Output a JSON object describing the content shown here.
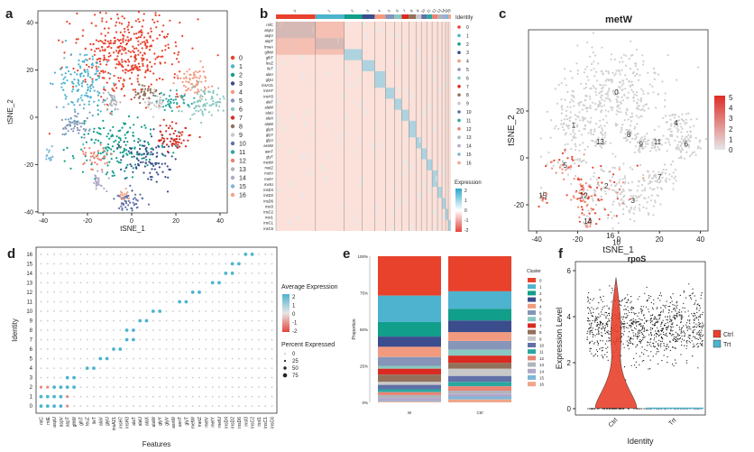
{
  "colors": [
    "#e8412c",
    "#4db3ce",
    "#119e8a",
    "#3b4d8d",
    "#f29a7f",
    "#8695b8",
    "#88c8c0",
    "#d92b21",
    "#93705a",
    "#c8c8c8",
    "#6270a8",
    "#2aa7a0",
    "#e98271",
    "#b0b4bb",
    "#b1a7c9",
    "#7fb6d8",
    "#f0a58a"
  ],
  "panels": {
    "a": {
      "letter": "a",
      "xlabel": "tSNE_1",
      "ylabel": "tSNE_2",
      "xticks": [
        "-40",
        "-20",
        "0",
        "20",
        "40"
      ],
      "yticks": [
        "40",
        "20",
        "0",
        "-20",
        "-40"
      ],
      "legend": [
        "0",
        "1",
        "2",
        "3",
        "4",
        "5",
        "6",
        "7",
        "8",
        "9",
        "10",
        "11",
        "12",
        "13",
        "14",
        "15",
        "16"
      ]
    },
    "b": {
      "letter": "b",
      "legend_title": "Identity",
      "legend": [
        "0",
        "1",
        "2",
        "3",
        "4",
        "5",
        "6",
        "7",
        "8",
        "9",
        "10",
        "11",
        "12",
        "13",
        "14",
        "15",
        "16"
      ],
      "colorbar_title": "Expression",
      "colorbar_ticks": [
        "2",
        "1",
        "0",
        "-1",
        "-2"
      ],
      "genes": [
        "rnlC",
        "aspU",
        "aspV",
        "aspT",
        "tmaA",
        "glhW",
        "glhT",
        "leuZ",
        "ileT",
        "alaV",
        "glyU",
        "insA21",
        "insH7",
        "insH3",
        "alaT",
        "alaW",
        "alaU",
        "alaX",
        "alaW",
        "glyX",
        "glyY",
        "glyV",
        "asnW",
        "asnT",
        "glyT",
        "metW",
        "metZ",
        "metV",
        "metY",
        "metU",
        "insD4",
        "insD2",
        "insD6",
        "insI3",
        "insC2",
        "insI1",
        "insC1",
        "insC6"
      ],
      "top_labels": [
        "0",
        "1",
        "2",
        "3",
        "4",
        "5",
        "6",
        "7",
        "8",
        "9",
        "10",
        "11",
        "12",
        "13",
        "14",
        "15",
        "16"
      ]
    },
    "c": {
      "letter": "c",
      "title": "metW",
      "xlabel": "tSNE_1",
      "ylabel": "tSNE_2",
      "xticks": [
        "-40",
        "-20",
        "0",
        "20",
        "40"
      ],
      "yticks": [
        "20",
        "0",
        "-20"
      ],
      "colorbar_ticks": [
        "5",
        "4",
        "3",
        "2",
        "1",
        "0"
      ],
      "cluster_labels": [
        "0",
        "1",
        "2",
        "3",
        "4",
        "5",
        "6",
        "7",
        "8",
        "9",
        "10",
        "11",
        "12",
        "13",
        "14",
        "15",
        "16"
      ]
    },
    "d": {
      "letter": "d",
      "xlabel": "Features",
      "ylabel": "Identity",
      "identities": [
        "0",
        "1",
        "2",
        "3",
        "4",
        "5",
        "6",
        "7",
        "8",
        "9",
        "10",
        "11",
        "12",
        "13",
        "14",
        "15",
        "16"
      ],
      "features": [
        "rnlC",
        "rnlE",
        "aspU",
        "aspV",
        "aspT",
        "glhW",
        "glhT",
        "leuZ",
        "ileT",
        "alaV",
        "glyU",
        "insA21",
        "insH7",
        "insH3",
        "alaT",
        "alaU",
        "alaX",
        "alaW",
        "glyY",
        "glyV",
        "asnW",
        "asnT",
        "glyT",
        "metW",
        "metZ",
        "metV",
        "metY",
        "metU",
        "insD4",
        "insD2",
        "insD6",
        "insI3",
        "insC2",
        "insI1",
        "insC1",
        "insC6"
      ],
      "avg_title": "Average Expression",
      "avg_ticks": [
        "2",
        "1",
        "0",
        "-1",
        "-2"
      ],
      "pct_title": "Percent Expressed",
      "pct_ticks": [
        "0",
        "25",
        "50",
        "75"
      ]
    },
    "e": {
      "letter": "e",
      "ylabel": "Proportion",
      "yticks": [
        "100%",
        "75%",
        "50%",
        "25%",
        "0%"
      ],
      "legend_title": "Cluster",
      "categories": [
        "W",
        "Ctrl"
      ],
      "series": [
        {
          "name": "0",
          "values": [
            0.27,
            0.24
          ]
        },
        {
          "name": "1",
          "values": [
            0.18,
            0.12
          ]
        },
        {
          "name": "2",
          "values": [
            0.1,
            0.08
          ]
        },
        {
          "name": "3",
          "values": [
            0.07,
            0.08
          ]
        },
        {
          "name": "4",
          "values": [
            0.07,
            0.06
          ]
        },
        {
          "name": "5",
          "values": [
            0.06,
            0.06
          ]
        },
        {
          "name": "6",
          "values": [
            0.02,
            0.04
          ]
        },
        {
          "name": "7",
          "values": [
            0.04,
            0.05
          ]
        },
        {
          "name": "8",
          "values": [
            0.05,
            0.04
          ]
        },
        {
          "name": "9",
          "values": [
            0.02,
            0.05
          ]
        },
        {
          "name": "10",
          "values": [
            0.03,
            0.04
          ]
        },
        {
          "name": "11",
          "values": [
            0.02,
            0.03
          ]
        },
        {
          "name": "12",
          "values": [
            0.02,
            0.03
          ]
        },
        {
          "name": "13",
          "values": [
            0.02,
            0.02
          ]
        },
        {
          "name": "14",
          "values": [
            0.02,
            0.02
          ]
        },
        {
          "name": "15",
          "values": [
            0.005,
            0.02
          ]
        },
        {
          "name": "16",
          "values": [
            0.005,
            0.02
          ]
        }
      ]
    },
    "f": {
      "letter": "f",
      "title": "rpoS",
      "xlabel": "Identity",
      "ylabel": "Expression Level",
      "yticks": [
        "6",
        "4",
        "2",
        "0"
      ],
      "categories": [
        "Ctrl",
        "Trt"
      ],
      "legend": [
        "Ctrl",
        "Trt"
      ],
      "legend_colors": [
        "#e8412c",
        "#4db3ce"
      ]
    }
  }
}
